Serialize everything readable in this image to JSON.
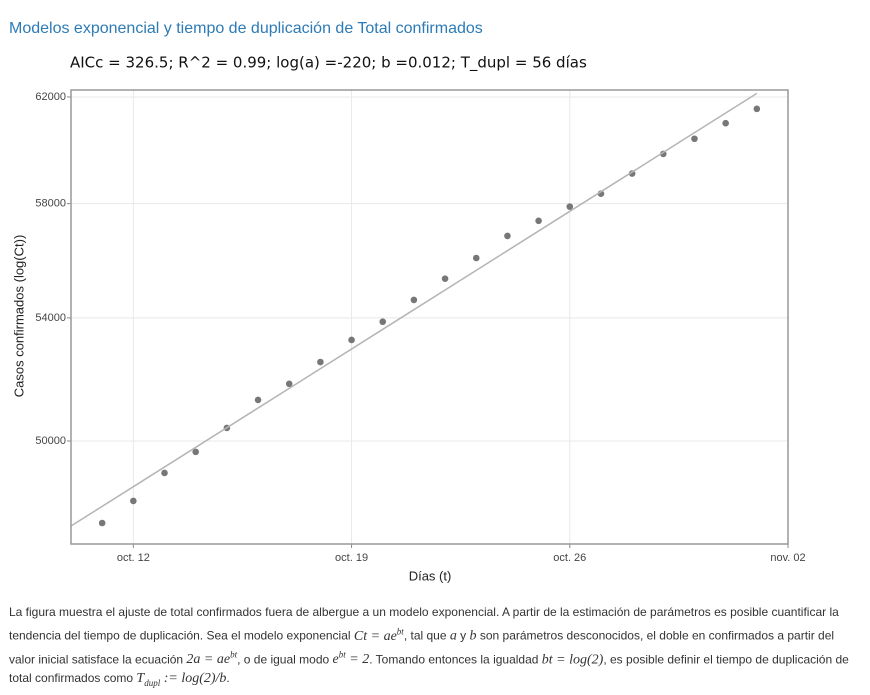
{
  "chart_data": {
    "type": "scatter",
    "title": "Modelos exponencial y tiempo de duplicación de Total confirmados",
    "subtitle": "AICc = 326.5; R^2 = 0.99; log(a) =-220; b =0.012; T_dupl = 56 días",
    "x_label": "Días (t)",
    "y_label": "Casos confirmados (log(Ct))",
    "log_y": true,
    "grid": true,
    "xlim": [
      "10-10",
      "11-02"
    ],
    "xticks": [
      {
        "value": "10-12",
        "label": "oct. 12"
      },
      {
        "value": "10-19",
        "label": "oct. 19"
      },
      {
        "value": "10-26",
        "label": "oct. 26"
      },
      {
        "value": "11-02",
        "label": "nov. 02"
      }
    ],
    "ylim": [
      46880,
      62270
    ],
    "yticks": [
      50000,
      54000,
      58000,
      62000
    ],
    "series": [
      {
        "mode": "markers",
        "color": "#777777",
        "x": [
          "10-11",
          "10-12",
          "10-13",
          "10-14",
          "10-15",
          "10-16",
          "10-17",
          "10-18",
          "10-19",
          "10-20",
          "10-21",
          "10-22",
          "10-23",
          "10-24",
          "10-25",
          "10-26",
          "10-27",
          "10-28",
          "10-29",
          "10-30",
          "10-31",
          "11-01"
        ],
        "values": [
          47500,
          48160,
          49010,
          49660,
          50410,
          51300,
          51820,
          52530,
          53260,
          53870,
          54610,
          55340,
          56060,
          56840,
          57380,
          57890,
          58360,
          59100,
          59830,
          60400,
          60990,
          61540
        ]
      },
      {
        "mode": "line",
        "color": "#b5b5b5",
        "x": [
          "10-10",
          "11-01"
        ],
        "values": [
          47410,
          62140
        ]
      }
    ],
    "caption": [
      {
        "text": "La figura muestra el ajuste de total confirmados fuera de albergue a un modelo exponencial. A partir de la estimación de parámetros es posible cuantificar la tendencia del tiempo de duplicación. Sea el modelo exponencial "
      },
      {
        "math": "Ct = ae",
        "sup": "bt"
      },
      {
        "text": ", tal que "
      },
      {
        "math": "a"
      },
      {
        "text": " y "
      },
      {
        "math": "b"
      },
      {
        "text": " son parámetros desconocidos, el doble en confirmados a partir del valor inicial satisface la ecuación "
      },
      {
        "math": "2a = ae",
        "sup": "bt"
      },
      {
        "text": ", o de igual modo "
      },
      {
        "math": "e",
        "sup": "bt",
        "after": " = 2"
      },
      {
        "text": ". Tomando entonces la igualdad "
      },
      {
        "math": "bt = log(2)"
      },
      {
        "text": ", es posible definir el tiempo de duplicación de total confirmados como "
      },
      {
        "math": "T",
        "sub": "dupl",
        "after": " := log(2)/b"
      },
      {
        "text": "."
      }
    ]
  }
}
